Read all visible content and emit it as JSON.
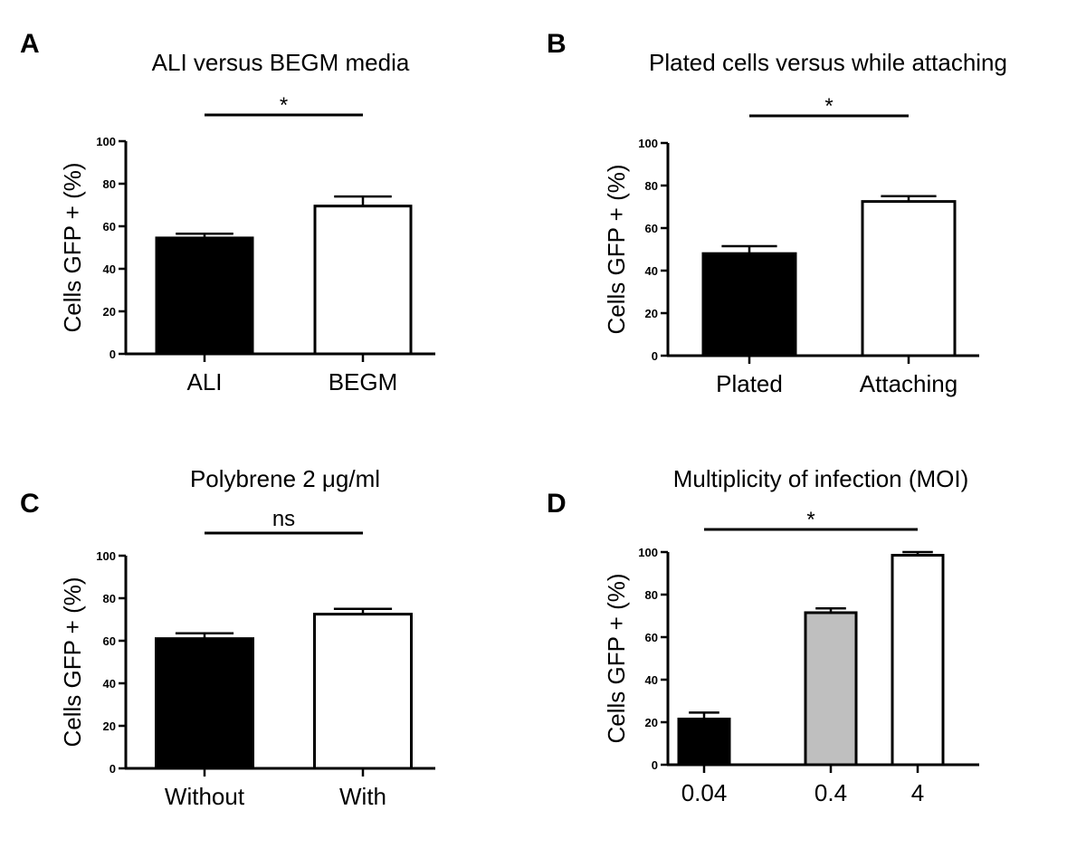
{
  "figure": {
    "panels": [
      {
        "letter": "A"
      },
      {
        "letter": "B"
      },
      {
        "letter": "C"
      },
      {
        "letter": "D"
      }
    ]
  },
  "chart_data": [
    {
      "type": "bar",
      "title": "ALI versus BEGM media",
      "xlabel": "",
      "ylabel": "Cells GFP + (%)",
      "ylim": [
        0,
        100
      ],
      "yticks": [
        0,
        20,
        40,
        60,
        80,
        100
      ],
      "categories": [
        "ALI",
        "BEGM"
      ],
      "values": [
        54.5,
        69.5
      ],
      "errors": [
        2.0,
        4.5
      ],
      "bar_colors": [
        "#000000",
        "#ffffff"
      ],
      "significance": "*"
    },
    {
      "type": "bar",
      "title": "Plated cells versus while attaching",
      "xlabel": "",
      "ylabel": "Cells GFP + (%)",
      "ylim": [
        0,
        100
      ],
      "yticks": [
        0,
        20,
        40,
        60,
        80,
        100
      ],
      "categories": [
        "Plated",
        "Attaching"
      ],
      "values": [
        48.0,
        72.5
      ],
      "errors": [
        3.5,
        2.5
      ],
      "bar_colors": [
        "#000000",
        "#ffffff"
      ],
      "significance": "*"
    },
    {
      "type": "bar",
      "title": "Polybrene 2 μg/ml",
      "xlabel": "",
      "ylabel": "Cells GFP + (%)",
      "ylim": [
        0,
        100
      ],
      "yticks": [
        0,
        20,
        40,
        60,
        80,
        100
      ],
      "categories": [
        "Without",
        "With"
      ],
      "values": [
        61.0,
        72.5
      ],
      "errors": [
        2.5,
        2.5
      ],
      "bar_colors": [
        "#000000",
        "#ffffff"
      ],
      "significance": "ns"
    },
    {
      "type": "bar",
      "title": "Multiplicity of infection (MOI)",
      "xlabel": "",
      "ylabel": "Cells GFP + (%)",
      "ylim": [
        0,
        100
      ],
      "yticks": [
        0,
        20,
        40,
        60,
        80,
        100
      ],
      "categories": [
        "0.04",
        "0.4",
        "4"
      ],
      "values": [
        21.5,
        71.5,
        98.5
      ],
      "errors": [
        3.0,
        2.0,
        1.5
      ],
      "bar_colors": [
        "#000000",
        "#bfbfbf",
        "#ffffff"
      ],
      "significance": "*"
    }
  ]
}
